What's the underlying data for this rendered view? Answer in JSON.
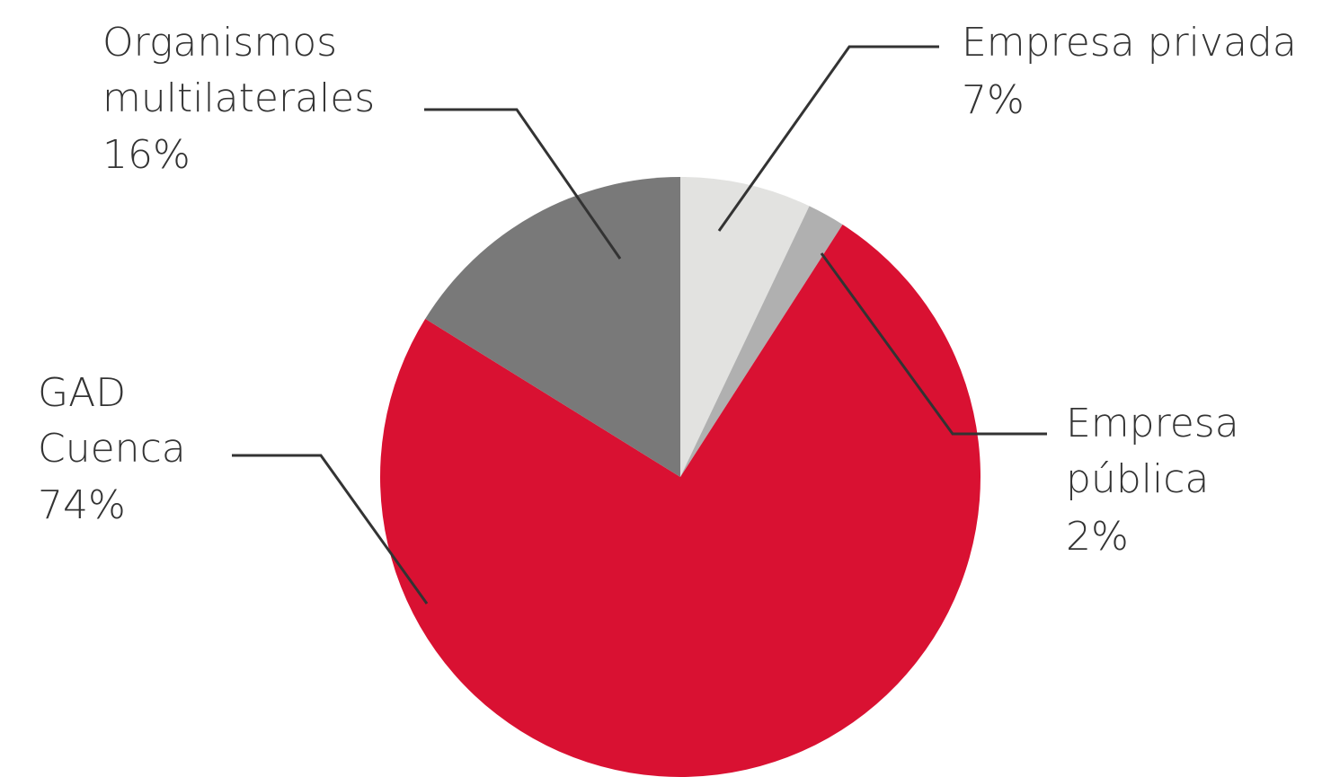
{
  "chart_data": {
    "type": "pie",
    "title": "",
    "slices": [
      {
        "name": "Empresa privada",
        "value": 7,
        "display": "7%",
        "color": "#e2e2e0"
      },
      {
        "name": "Empresa pública",
        "value": 2,
        "display": "2%",
        "color": "#b0b0b0"
      },
      {
        "name": "GAD Cuenca",
        "value": 74,
        "display": "74%",
        "color": "#d91132"
      },
      {
        "name": "Organismos multilaterales",
        "value": 16,
        "display": "16%",
        "color": "#797979"
      }
    ],
    "start_angle_deg": 0,
    "direction": "clockwise",
    "legend": "none (leader-line labels)"
  },
  "labels": {
    "privada": {
      "line1": "Empresa privada",
      "pct": "7%"
    },
    "publica": {
      "line1": "Empresa",
      "line2": "pública",
      "pct": "2%"
    },
    "gad": {
      "line1": "GAD",
      "line2": "Cuenca",
      "pct": "74%"
    },
    "organismos": {
      "line1": "Organismos",
      "line2": "multilaterales",
      "pct": "16%"
    }
  }
}
